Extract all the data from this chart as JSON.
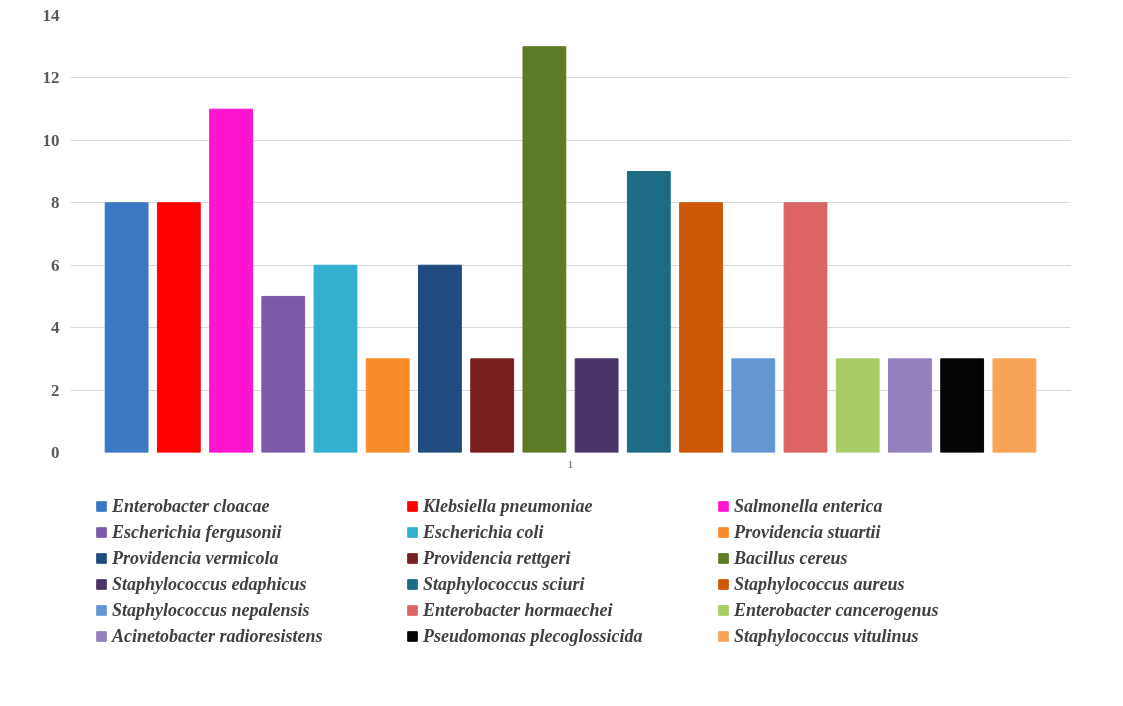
{
  "chart_data": {
    "type": "bar",
    "categories": [
      "1"
    ],
    "ylim": [
      0,
      14
    ],
    "yticks": [
      0,
      2,
      4,
      6,
      8,
      10,
      12,
      14
    ],
    "grid": "y",
    "legend": "bottom",
    "series": [
      {
        "name": "Enterobacter cloacae",
        "color": "#3d78c4",
        "values": [
          8
        ]
      },
      {
        "name": "Klebsiella pneumoniae",
        "color": "#ff0000",
        "values": [
          8
        ]
      },
      {
        "name": "Salmonella enterica",
        "color": "#ff14d0",
        "values": [
          11
        ]
      },
      {
        "name": "Escherichia fergusonii",
        "color": "#7c5aa8",
        "values": [
          5
        ]
      },
      {
        "name": "Escherichia coli",
        "color": "#33b0d0",
        "values": [
          6
        ]
      },
      {
        "name": "Providencia stuartii",
        "color": "#f88a28",
        "values": [
          3
        ]
      },
      {
        "name": "Providencia vermicola",
        "color": "#214a7e",
        "values": [
          6
        ]
      },
      {
        "name": "Providencia rettgeri",
        "color": "#7a1f1f",
        "values": [
          3
        ]
      },
      {
        "name": "Bacillus cereus",
        "color": "#5d7a26",
        "values": [
          13
        ]
      },
      {
        "name": "Staphylococcus edaphicus",
        "color": "#4a3468",
        "values": [
          3
        ]
      },
      {
        "name": "Staphylococcus sciuri",
        "color": "#1d6b84",
        "values": [
          9
        ]
      },
      {
        "name": "Staphylococcus aureus",
        "color": "#cc5808",
        "values": [
          8
        ]
      },
      {
        "name": "Staphylococcus nepalensis",
        "color": "#6496d4",
        "values": [
          3
        ]
      },
      {
        "name": "Enterobacter hormaechei",
        "color": "#dc6464",
        "values": [
          8
        ]
      },
      {
        "name": "Enterobacter cancerogenus",
        "color": "#a8cc68",
        "values": [
          3
        ]
      },
      {
        "name": "Acinetobacter radioresistens",
        "color": "#9480bc",
        "values": [
          3
        ]
      },
      {
        "name": "Pseudomonas plecoglossicida",
        "color": "#050505",
        "values": [
          3
        ]
      },
      {
        "name": "Staphylococcus vitulinus",
        "color": "#f8a458",
        "values": [
          3
        ]
      }
    ]
  }
}
